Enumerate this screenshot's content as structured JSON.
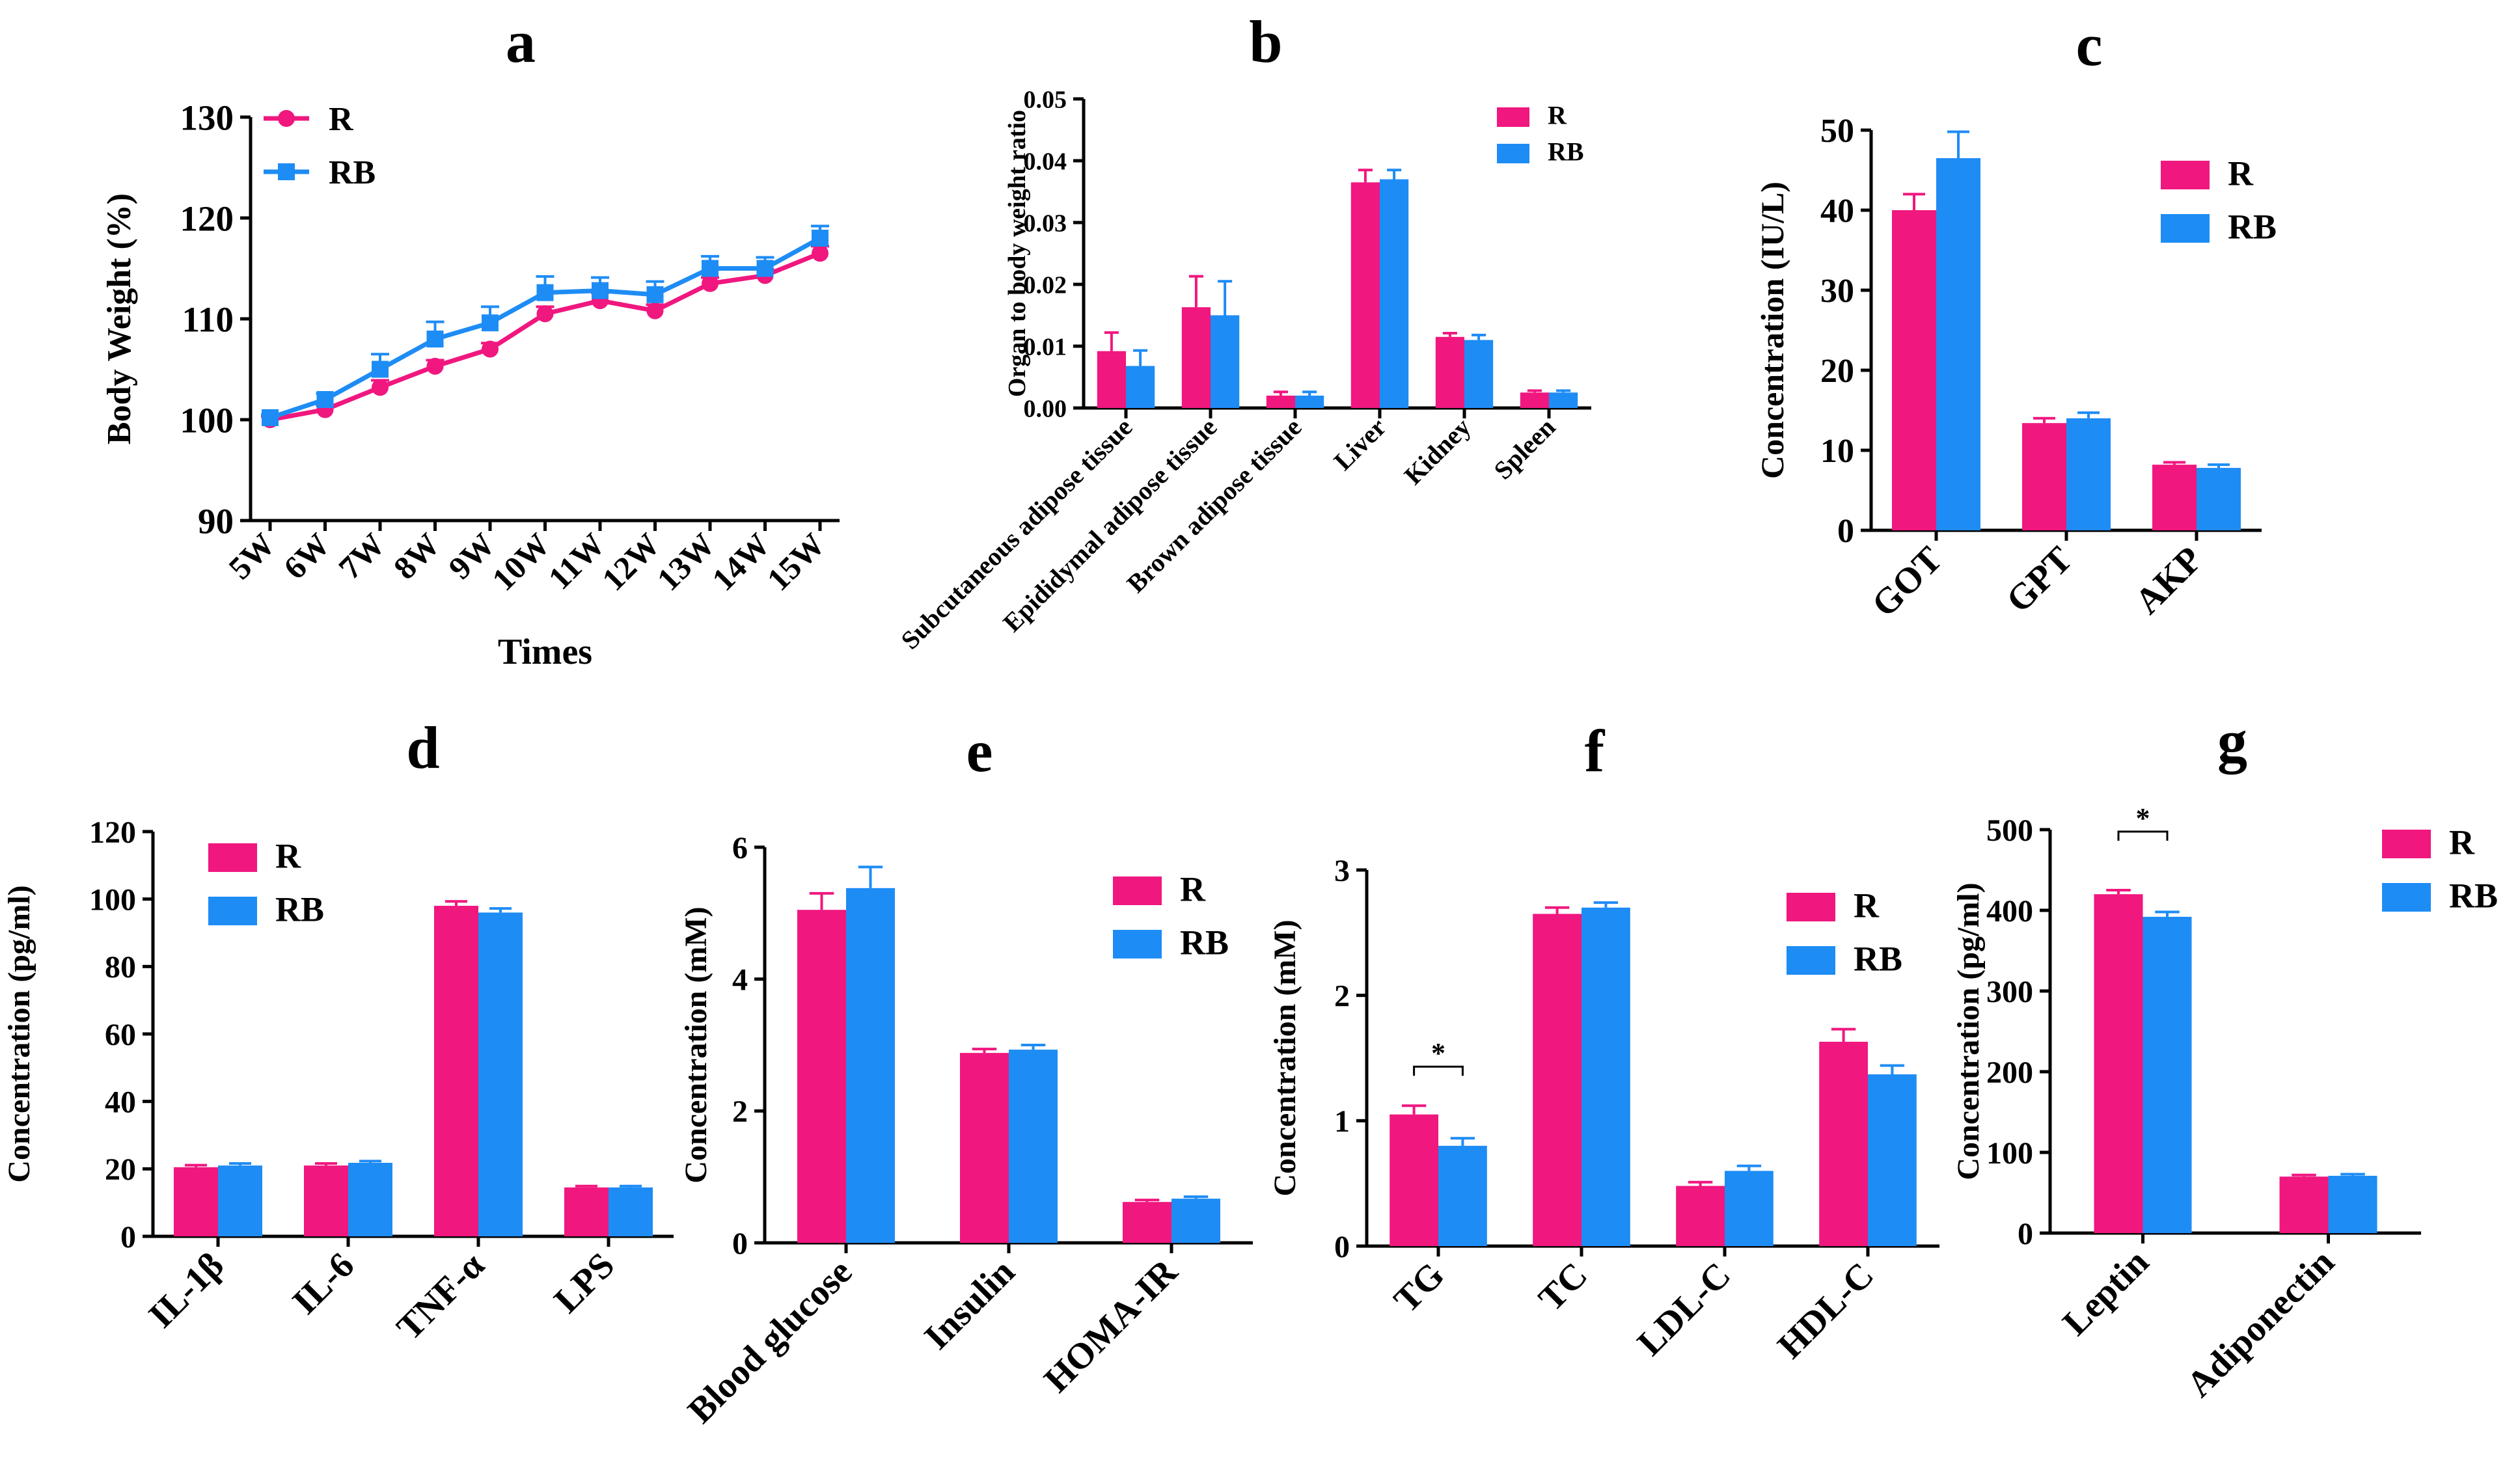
{
  "colors": {
    "R": "#f0177f",
    "RB": "#1e8cf5",
    "axis": "#000000"
  },
  "chart_data": [
    {
      "id": "a",
      "type": "line",
      "panel_label": "a",
      "title": "",
      "xlabel": "Times",
      "ylabel": "Body Weight (%)",
      "categories": [
        "5W",
        "6W",
        "7W",
        "8W",
        "9W",
        "10W",
        "11W",
        "12W",
        "13W",
        "14W",
        "15W"
      ],
      "ylim": [
        90,
        130
      ],
      "yticks": [
        90,
        100,
        110,
        120,
        130
      ],
      "legend_position": "top-left",
      "series": [
        {
          "name": "R",
          "values": [
            100.0,
            101.0,
            103.2,
            105.3,
            107.0,
            110.5,
            111.8,
            110.8,
            113.5,
            114.3,
            116.5
          ],
          "errors": [
            0.3,
            0.4,
            0.7,
            0.6,
            0.6,
            0.7,
            0.8,
            0.6,
            0.6,
            0.6,
            0.7
          ]
        },
        {
          "name": "RB",
          "values": [
            100.2,
            102.0,
            105.0,
            108.0,
            109.6,
            112.6,
            112.8,
            112.4,
            115.0,
            115.0,
            118.0
          ],
          "errors": [
            0.3,
            0.6,
            1.5,
            1.7,
            1.6,
            1.6,
            1.3,
            1.3,
            1.2,
            1.1,
            1.2
          ]
        }
      ]
    },
    {
      "id": "b",
      "type": "bar",
      "panel_label": "b",
      "xlabel": "",
      "ylabel": "Organ to body weight ratio",
      "categories": [
        "Subcutaneous adipose tissue",
        "Epididymal adipose tissue",
        "Brown adipose tissue",
        "Liver",
        "Kidney",
        "Spleen"
      ],
      "ylim": [
        0,
        0.05
      ],
      "yticks": [
        "0.00",
        "0.01",
        "0.02",
        "0.03",
        "0.04",
        "0.05"
      ],
      "legend_position": "top-right",
      "series": [
        {
          "name": "R",
          "values": [
            0.0092,
            0.0163,
            0.002,
            0.0365,
            0.0115,
            0.0025
          ],
          "errors": [
            0.003,
            0.005,
            0.0006,
            0.002,
            0.0006,
            0.0003
          ]
        },
        {
          "name": "RB",
          "values": [
            0.0068,
            0.015,
            0.002,
            0.037,
            0.011,
            0.0025
          ],
          "errors": [
            0.0025,
            0.0055,
            0.0006,
            0.0015,
            0.0008,
            0.0003
          ]
        }
      ]
    },
    {
      "id": "c",
      "type": "bar",
      "panel_label": "c",
      "xlabel": "",
      "ylabel": "Concentration (IU/L)",
      "categories": [
        "GOT",
        "GPT",
        "AKP"
      ],
      "ylim": [
        0,
        50
      ],
      "yticks": [
        "0",
        "10",
        "20",
        "30",
        "40",
        "50"
      ],
      "legend_position": "top-right",
      "series": [
        {
          "name": "R",
          "values": [
            40.0,
            13.4,
            8.2
          ],
          "errors": [
            2.0,
            0.6,
            0.3
          ]
        },
        {
          "name": "RB",
          "values": [
            46.5,
            14.0,
            7.8
          ],
          "errors": [
            3.3,
            0.7,
            0.4
          ]
        }
      ]
    },
    {
      "id": "d",
      "type": "bar",
      "panel_label": "d",
      "xlabel": "",
      "ylabel": "Concentration (pg/ml)",
      "categories": [
        "IL-1β",
        "IL-6",
        "TNF-α",
        "LPS"
      ],
      "ylim": [
        0,
        120
      ],
      "yticks": [
        "0",
        "20",
        "40",
        "60",
        "80",
        "100",
        "120"
      ],
      "legend_position": "top-left",
      "series": [
        {
          "name": "R",
          "values": [
            20.5,
            21.0,
            98.0,
            14.5
          ],
          "errors": [
            0.6,
            0.6,
            1.3,
            0.4
          ]
        },
        {
          "name": "RB",
          "values": [
            21.0,
            21.8,
            96.0,
            14.5
          ],
          "errors": [
            0.6,
            0.5,
            1.2,
            0.4
          ]
        }
      ]
    },
    {
      "id": "e",
      "type": "bar",
      "panel_label": "e",
      "xlabel": "",
      "ylabel": "Concentration (mM)",
      "categories": [
        "Blood glucose",
        "Insulin",
        "HOMA-IR"
      ],
      "ylim": [
        0,
        6
      ],
      "yticks": [
        "0",
        "2",
        "4",
        "6"
      ],
      "legend_position": "top-right",
      "series": [
        {
          "name": "R",
          "values": [
            5.05,
            2.88,
            0.62
          ],
          "errors": [
            0.25,
            0.06,
            0.03
          ]
        },
        {
          "name": "RB",
          "values": [
            5.38,
            2.93,
            0.67
          ],
          "errors": [
            0.32,
            0.07,
            0.03
          ]
        }
      ]
    },
    {
      "id": "f",
      "type": "bar",
      "panel_label": "f",
      "xlabel": "",
      "ylabel": "Concentration (mM)",
      "categories": [
        "TG",
        "TC",
        "LDL-C",
        "HDL-C"
      ],
      "ylim": [
        0,
        3
      ],
      "yticks": [
        "0",
        "1",
        "2",
        "3"
      ],
      "legend_position": "top-right",
      "annotation": "*",
      "series": [
        {
          "name": "R",
          "values": [
            1.05,
            2.65,
            0.48,
            1.63
          ],
          "errors": [
            0.07,
            0.05,
            0.03,
            0.1
          ]
        },
        {
          "name": "RB",
          "values": [
            0.8,
            2.7,
            0.6,
            1.37
          ],
          "errors": [
            0.06,
            0.04,
            0.04,
            0.07
          ]
        }
      ]
    },
    {
      "id": "g",
      "type": "bar",
      "panel_label": "g",
      "xlabel": "",
      "ylabel": "Concentration (pg/ml)",
      "categories": [
        "Leptin",
        "Adiponectin"
      ],
      "ylim": [
        0,
        500
      ],
      "yticks": [
        "0",
        "100",
        "200",
        "300",
        "400",
        "500"
      ],
      "legend_position": "top-right",
      "annotation": "*",
      "series": [
        {
          "name": "R",
          "values": [
            420,
            70
          ],
          "errors": [
            5,
            2
          ]
        },
        {
          "name": "RB",
          "values": [
            392,
            71
          ],
          "errors": [
            6,
            2
          ]
        }
      ]
    }
  ]
}
